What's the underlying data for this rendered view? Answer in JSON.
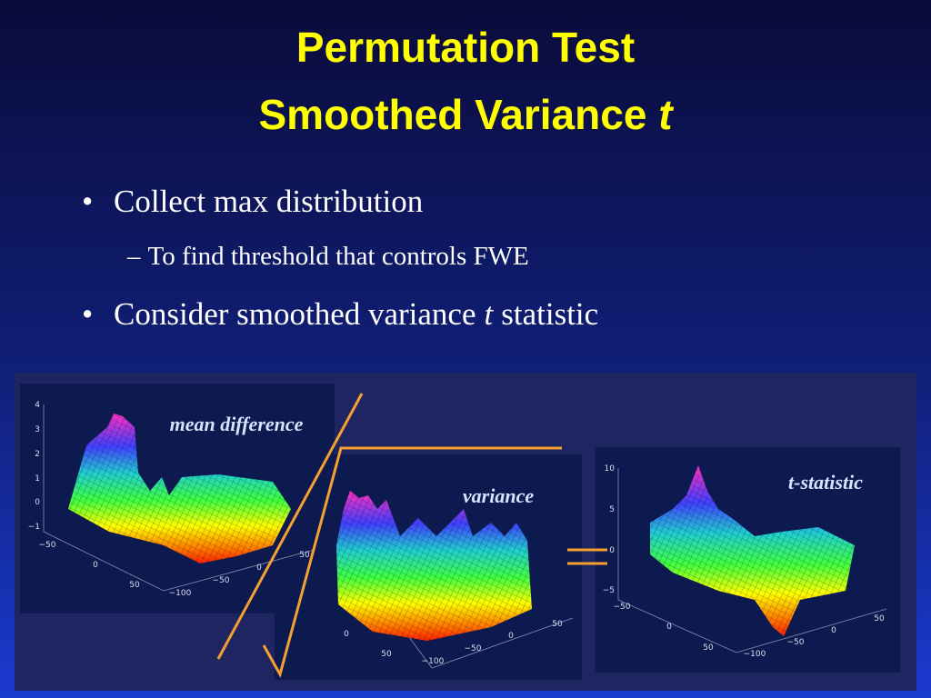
{
  "title": {
    "line1": "Permutation Test",
    "line2": [
      "Smoothed Variance",
      "t"
    ]
  },
  "bullets": [
    {
      "text": "Collect max distribution",
      "sub": [
        "To find threshold that controls FWE"
      ]
    },
    {
      "parts": [
        "Consider smoothed variance",
        "t",
        "statistic"
      ]
    }
  ],
  "panels": [
    {
      "label": "mean difference",
      "zticks": [
        "4",
        "3",
        "2",
        "1",
        "0",
        "−1"
      ],
      "xticks": [
        "−50",
        "0",
        "50"
      ],
      "yticks": [
        "−100",
        "−50",
        "0",
        "50"
      ]
    },
    {
      "label": "variance",
      "xticks": [
        "0",
        "50"
      ],
      "yticks": [
        "−100",
        "−50",
        "0",
        "50"
      ]
    },
    {
      "label": "t-statistic",
      "zticks": [
        "10",
        "5",
        "0",
        "−5"
      ],
      "xticks": [
        "−50",
        "0",
        "50"
      ],
      "yticks": [
        "−100",
        "−50",
        "0",
        "50"
      ]
    }
  ]
}
